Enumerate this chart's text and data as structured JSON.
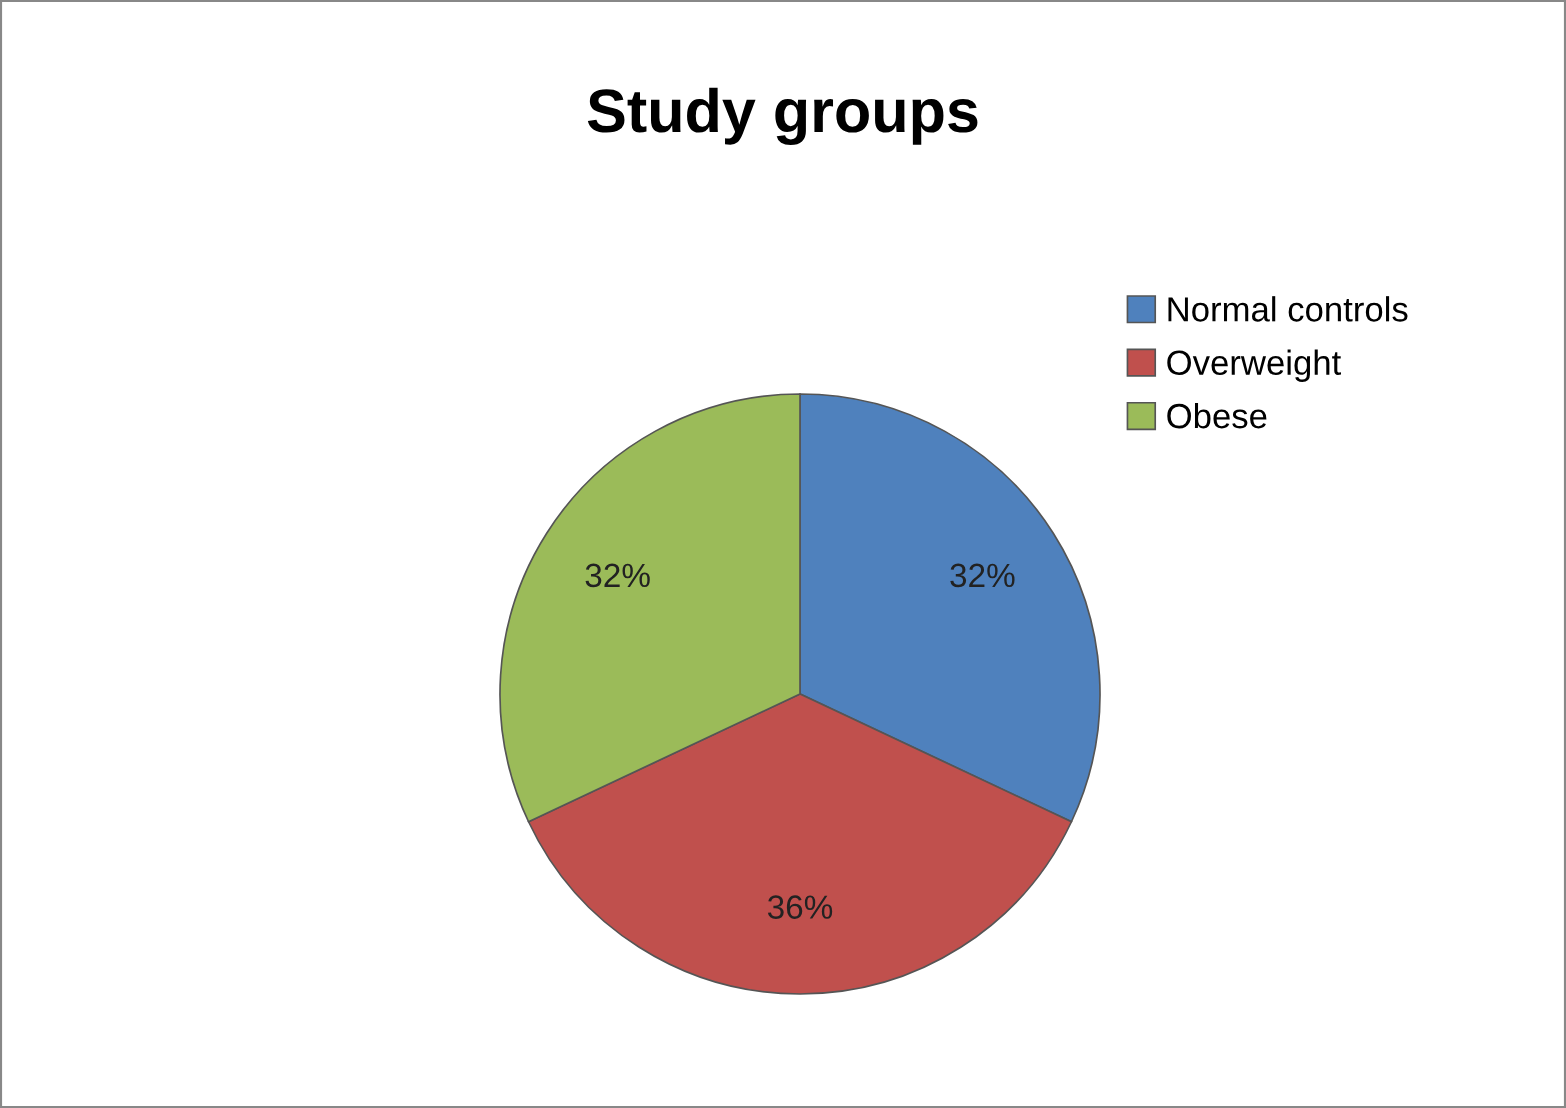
{
  "chart_data": {
    "type": "pie",
    "title": "Study groups",
    "categories": [
      "Normal controls",
      "Overweight",
      "Obese"
    ],
    "values": [
      32,
      36,
      32
    ],
    "colors": [
      "#4f81bd",
      "#c0504d",
      "#9bbb59"
    ],
    "value_labels": [
      "32%",
      "36%",
      "32%"
    ],
    "legend": "right"
  }
}
